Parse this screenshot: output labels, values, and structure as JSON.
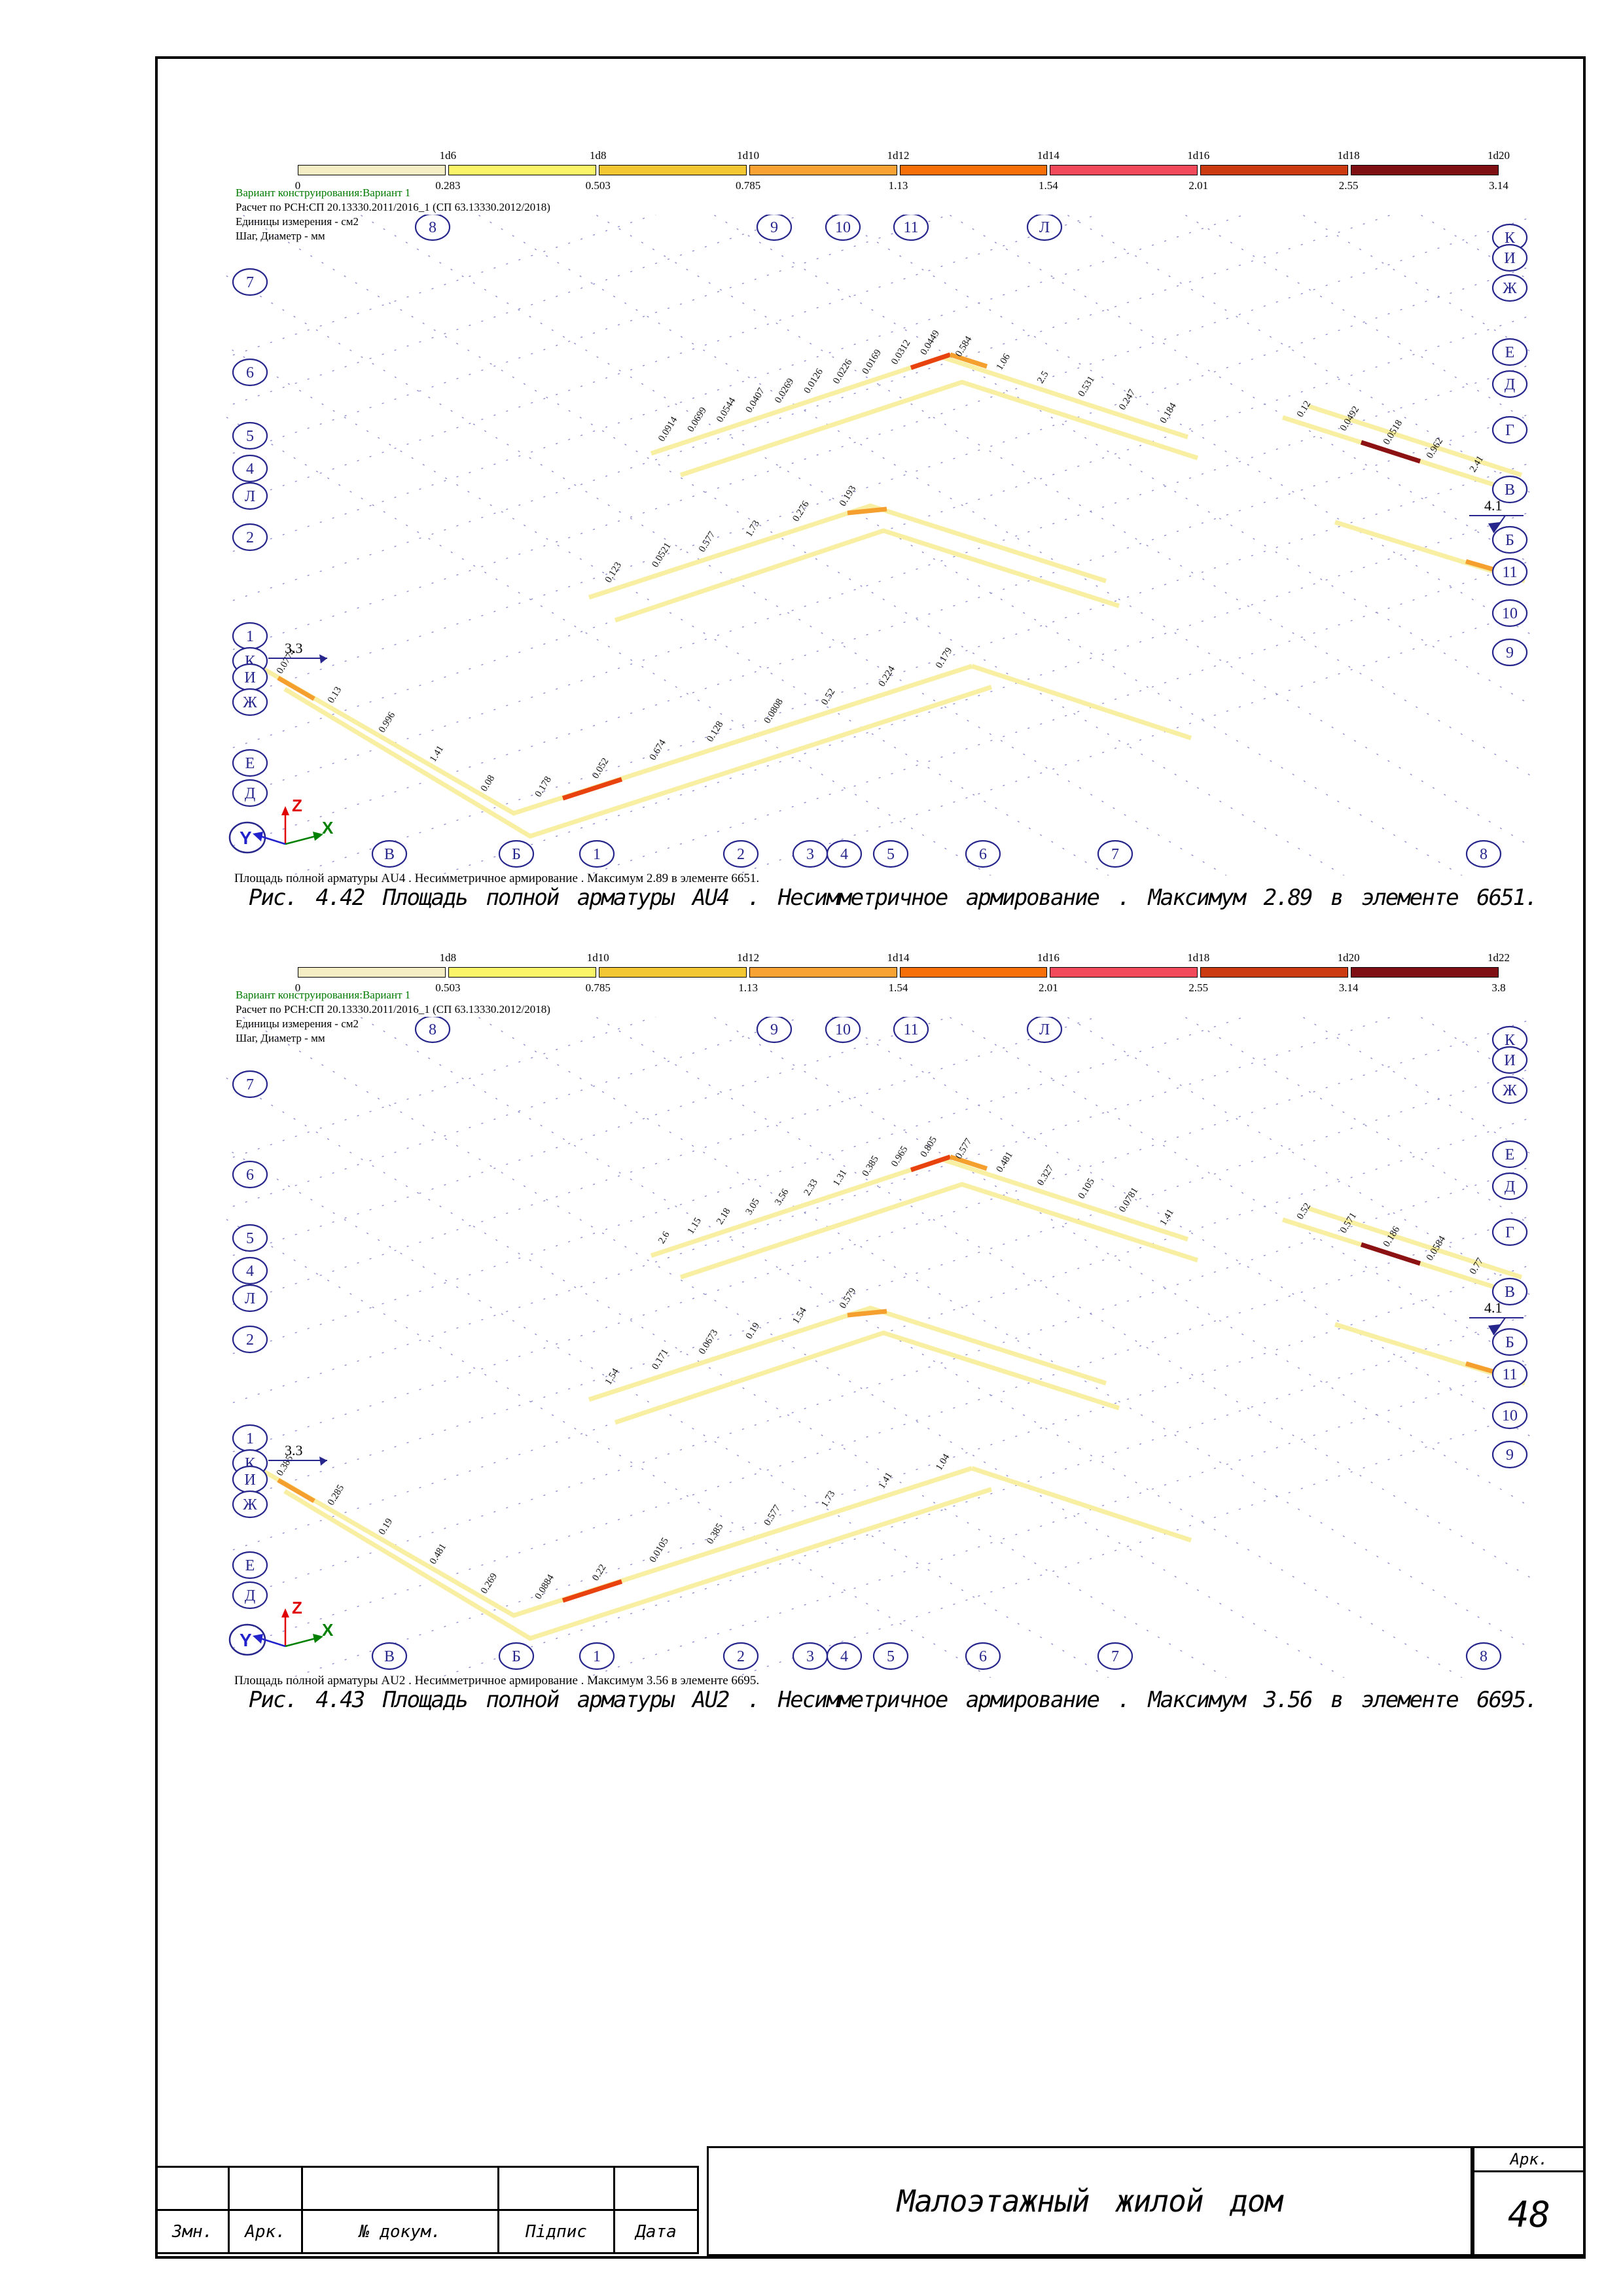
{
  "colors": {
    "navy": "#26268C",
    "dash": "#3434A3",
    "green": "#007A00",
    "beam": "#F8EFA3",
    "hot_orange": "#F59F2E",
    "hot_red": "#E8420E",
    "hot_dark": "#8B1113",
    "triad_z": "#E00000",
    "triad_x": "#008000",
    "triad_y": "#2222CC"
  },
  "figures": [
    {
      "legend": {
        "tick_labels": [
          "1d6",
          "1d8",
          "1d10",
          "1d12",
          "1d14",
          "1d16",
          "1d18",
          "1d20"
        ],
        "boundary_values": [
          "0",
          "0.283",
          "0.503",
          "0.785",
          "1.13",
          "1.54",
          "2.01",
          "2.55",
          "3.14"
        ],
        "segment_colors": [
          "#F5EEC5",
          "#F9F468",
          "#F2C733",
          "#F7A233",
          "#F66F08",
          "#F2495B",
          "#CB3A10",
          "#7E1013"
        ]
      },
      "info_lines": {
        "variant": "Вариант конструирования:Вариант 1",
        "calc": "Расчет по РСН:СП 20.13330.2011/2016_1 (СП 63.13330.2012/2018)",
        "units": "Единицы измерения - см2",
        "step": "Шаг, Диаметр - мм"
      },
      "axes": {
        "left": [
          "7",
          "6",
          "5",
          "4",
          "Л",
          "2",
          "1",
          "К",
          "И",
          "Ж",
          "Е",
          "Д"
        ],
        "top": [
          "8",
          "9",
          "10",
          "11",
          "Л"
        ],
        "right": [
          "К",
          "И",
          "Ж",
          "Е",
          "Д",
          "Г",
          "В",
          "Б",
          "11",
          "10",
          "9"
        ],
        "bottom": [
          "В",
          "Б",
          "1",
          "2",
          "3",
          "4",
          "5",
          "6",
          "7",
          "8"
        ]
      },
      "dimension_left": "3.3",
      "dimension_right": "4.1",
      "triad": {
        "x": "X",
        "y": "Y",
        "z": "Z"
      },
      "beam_values": [
        "0.0914",
        "0.0699",
        "0.0544",
        "0.0407",
        "0.0269",
        "0.0126",
        "0.0226",
        "0.0169",
        "0.0312",
        "0.0449",
        "0.584",
        "1.06",
        "2.5",
        "0.531",
        "0.247",
        "0.184",
        "0.123",
        "0.0521",
        "0.577",
        "1.73",
        "0.276",
        "0.193",
        "0.0774",
        "0.13",
        "0.996",
        "1.41",
        "0.08",
        "0.178",
        "0.052",
        "0.674",
        "0.128",
        "0.0808",
        "0.52",
        "0.224",
        "0.179",
        "0.12",
        "0.0492",
        "0.0518",
        "0.962",
        "2.41"
      ],
      "caption_small": "Площадь полной арматуры AU4 . Несимметричное армирование . Максимум 2.89 в элементе 6651.",
      "caption": "Рис. 4.42 Площадь полной арматуры AU4 . Несимметричное армирование . Максимум 2.89 в элементе 6651."
    },
    {
      "legend": {
        "tick_labels": [
          "1d8",
          "1d10",
          "1d12",
          "1d14",
          "1d16",
          "1d18",
          "1d20",
          "1d22"
        ],
        "boundary_values": [
          "0",
          "0.503",
          "0.785",
          "1.13",
          "1.54",
          "2.01",
          "2.55",
          "3.14",
          "3.8"
        ],
        "segment_colors": [
          "#F5EEC5",
          "#F9F468",
          "#F2C733",
          "#F7A233",
          "#F66F08",
          "#F2495B",
          "#CB3A10",
          "#7E1013"
        ]
      },
      "info_lines": {
        "variant": "Вариант конструирования:Вариант 1",
        "calc": "Расчет по РСН:СП 20.13330.2011/2016_1 (СП 63.13330.2012/2018)",
        "units": "Единицы измерения - см2",
        "step": "Шаг, Диаметр - мм"
      },
      "axes": {
        "left": [
          "7",
          "6",
          "5",
          "4",
          "Л",
          "2",
          "1",
          "К",
          "И",
          "Ж",
          "Е",
          "Д"
        ],
        "top": [
          "8",
          "9",
          "10",
          "11",
          "Л"
        ],
        "right": [
          "К",
          "И",
          "Ж",
          "Е",
          "Д",
          "Г",
          "В",
          "Б",
          "11",
          "10",
          "9"
        ],
        "bottom": [
          "В",
          "Б",
          "1",
          "2",
          "3",
          "4",
          "5",
          "6",
          "7",
          "8"
        ]
      },
      "dimension_left": "3.3",
      "dimension_right": "4.1",
      "triad": {
        "x": "X",
        "y": "Y",
        "z": "Z"
      },
      "beam_values": [
        "2.6",
        "1.15",
        "2.18",
        "3.05",
        "3.56",
        "2.33",
        "1.31",
        "0.385",
        "0.965",
        "0.805",
        "0.577",
        "0.481",
        "0.327",
        "0.105",
        "0.0781",
        "1.41",
        "1.54",
        "0.171",
        "0.0673",
        "0.19",
        "1.54",
        "0.579",
        "0.385",
        "0.285",
        "0.19",
        "0.481",
        "0.269",
        "0.0884",
        "0.22",
        "0.0105",
        "0.385",
        "0.577",
        "1.73",
        "1.41",
        "1.04",
        "0.52",
        "0.571",
        "0.186",
        "0.0584",
        "0.77"
      ],
      "caption_small": "Площадь полной арматуры AU2 . Несимметричное армирование . Максимум 3.56 в элементе 6695.",
      "caption": "Рис. 4.43 Площадь полной арматуры AU2 . Несимметричное армирование . Максимум 3.56 в элементе 6695."
    }
  ],
  "title_block": {
    "columns": [
      "Змн.",
      "Арк.",
      "№ докум.",
      "Підпис",
      "Дата"
    ],
    "title": "Малоэтажный жилой дом",
    "sheet_corner_label": "Арк.",
    "sheet_number": "48"
  }
}
